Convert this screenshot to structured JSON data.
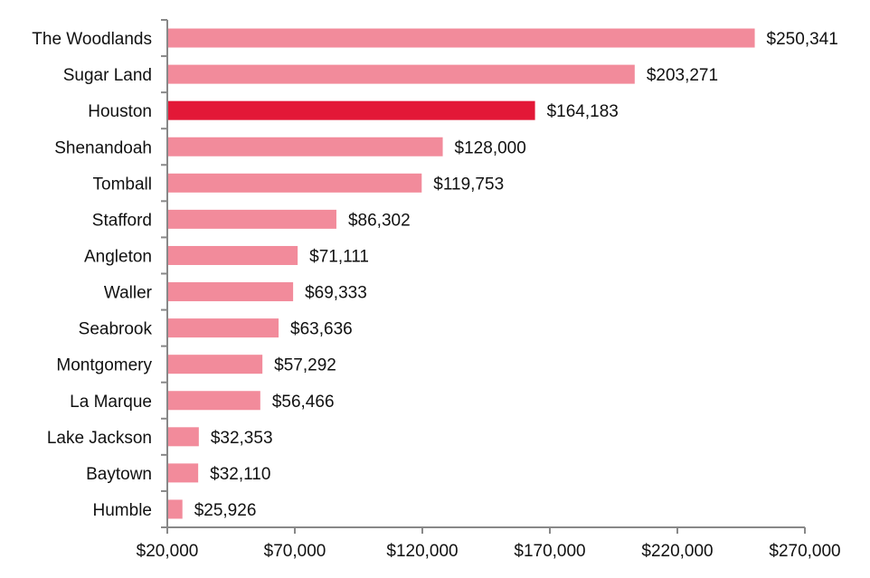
{
  "chart_data": {
    "type": "bar",
    "orientation": "horizontal",
    "title": "",
    "xlabel": "",
    "ylabel": "",
    "categories": [
      "The Woodlands",
      "Sugar Land",
      "Houston",
      "Shenandoah",
      "Tomball",
      "Stafford",
      "Angleton",
      "Waller",
      "Seabrook",
      "Montgomery",
      "La Marque",
      "Lake Jackson",
      "Baytown",
      "Humble"
    ],
    "values": [
      250341,
      203271,
      164183,
      128000,
      119753,
      86302,
      71111,
      69333,
      63636,
      57292,
      56466,
      32353,
      32110,
      25926
    ],
    "value_labels": [
      "$250,341",
      "$203,271",
      "$164,183",
      "$128,000",
      "$119,753",
      "$86,302",
      "$71,111",
      "$69,333",
      "$63,636",
      "$57,292",
      "$56,466",
      "$32,353",
      "$32,110",
      "$25,926"
    ],
    "highlight": "Houston",
    "xlim": [
      20000,
      270000
    ],
    "xticks": [
      20000,
      70000,
      120000,
      170000,
      220000,
      270000
    ],
    "xtick_labels": [
      "$20,000",
      "$70,000",
      "$120,000",
      "$170,000",
      "$220,000",
      "$270,000"
    ],
    "grid": false,
    "legend": "none",
    "colors": {
      "bar": "#F28B9B",
      "highlight": "#E31837",
      "axis": "#888888"
    }
  }
}
